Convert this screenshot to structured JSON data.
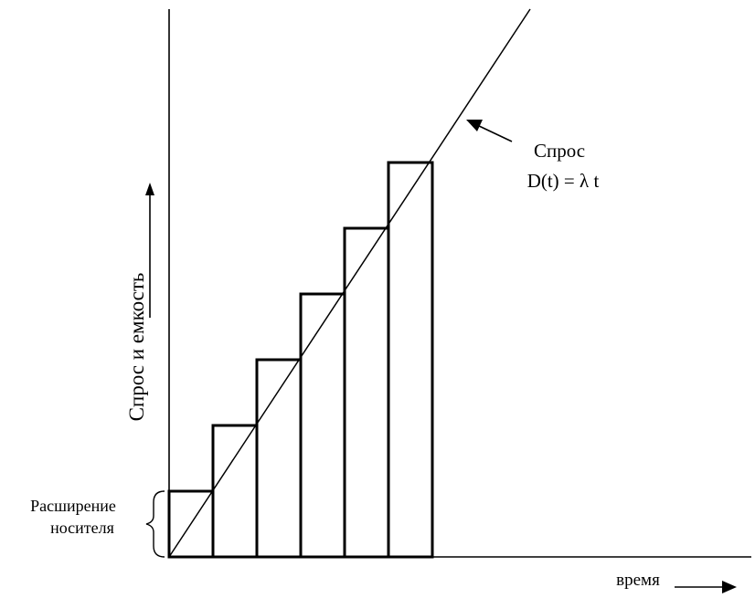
{
  "labels": {
    "y_axis": "Спрос и емкость",
    "x_axis": "время",
    "demand_title": "Спрос",
    "demand_formula": "D(t) = λ t",
    "expansion_line1": "Расширение",
    "expansion_line2": "носителя"
  },
  "chart_data": {
    "type": "step-capacity-diagram",
    "demand_line": "D(t) = λ t",
    "capacity_steps": 6,
    "step_heights_relative": [
      1,
      2,
      3,
      4,
      5,
      6
    ]
  }
}
